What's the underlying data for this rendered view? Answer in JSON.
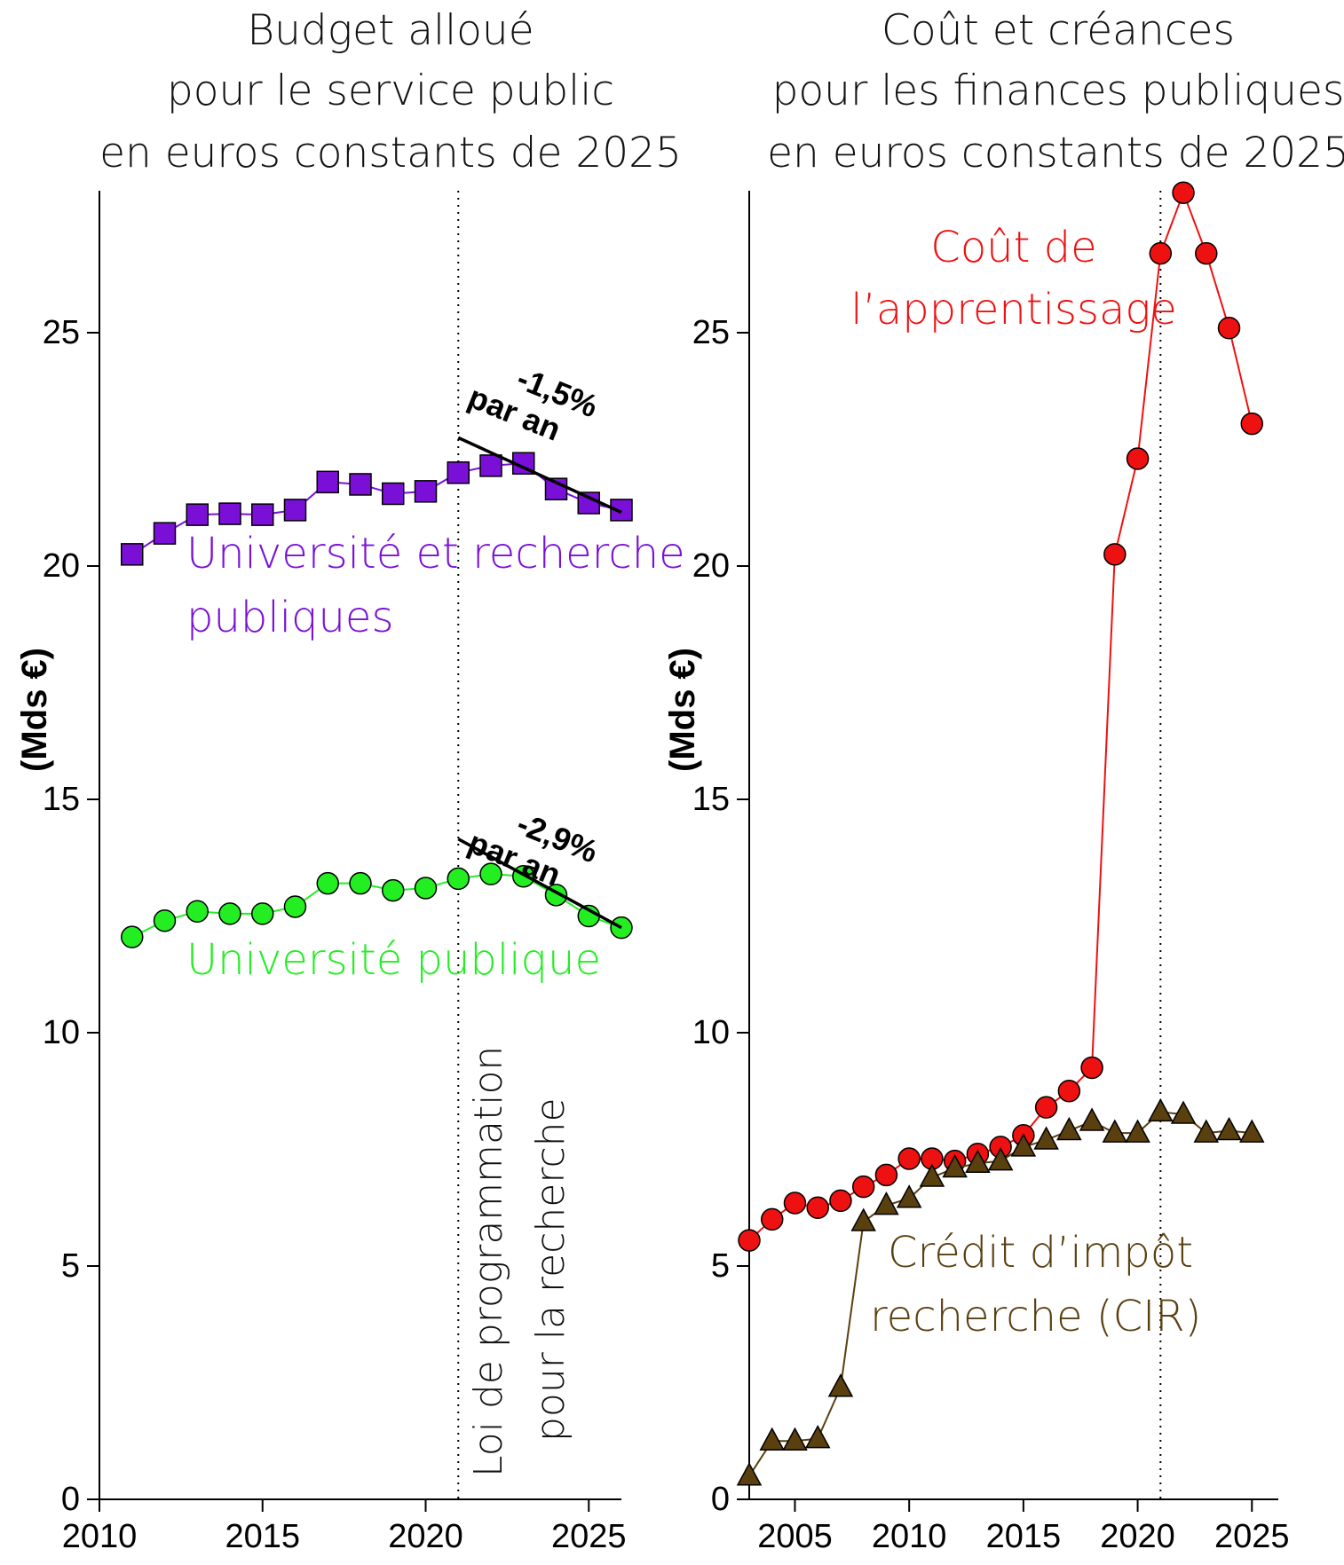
{
  "chart_data": [
    {
      "type": "line",
      "title": [
        "Budget alloué",
        "pour le service public",
        "en euros constants de 2025"
      ],
      "ylabel": "(Mds €)",
      "xlim": [
        2010,
        2026
      ],
      "ylim": [
        0,
        28
      ],
      "xticks": [
        2010,
        2015,
        2020,
        2025
      ],
      "yticks": [
        0,
        5,
        10,
        15,
        20,
        25
      ],
      "series": [
        {
          "name": "Université et recherche publiques",
          "label_lines": [
            "Université et recherche",
            "publiques"
          ],
          "color": "#7a10d8",
          "marker": "square",
          "x": [
            2011,
            2012,
            2013,
            2014,
            2015,
            2016,
            2017,
            2018,
            2019,
            2020,
            2021,
            2022,
            2023,
            2024,
            2025,
            2026
          ],
          "values": [
            20.25,
            20.7,
            21.1,
            21.12,
            21.1,
            21.2,
            21.8,
            21.75,
            21.55,
            21.6,
            22.0,
            22.15,
            22.2,
            21.65,
            21.35,
            21.2
          ]
        },
        {
          "name": "Université publique",
          "label_lines": [
            "Université publique"
          ],
          "color": "#22ee22",
          "marker": "circle",
          "x": [
            2011,
            2012,
            2013,
            2014,
            2015,
            2016,
            2017,
            2018,
            2019,
            2020,
            2021,
            2022,
            2023,
            2024,
            2025,
            2026
          ],
          "values": [
            12.05,
            12.4,
            12.6,
            12.55,
            12.55,
            12.7,
            13.2,
            13.2,
            13.05,
            13.1,
            13.3,
            13.4,
            13.35,
            12.95,
            12.5,
            12.25
          ]
        }
      ],
      "trend_lines": [
        {
          "x": [
            2021,
            2026
          ],
          "y": [
            22.75,
            21.15
          ],
          "label": [
            "-1,5%",
            "par an"
          ]
        },
        {
          "x": [
            2021,
            2026
          ],
          "y": [
            14.15,
            12.25
          ],
          "label": [
            "-2,9%",
            "par an"
          ]
        }
      ],
      "event": {
        "x": 2021,
        "label": [
          "Loi de programmation",
          "pour la recherche"
        ]
      }
    },
    {
      "type": "line",
      "title": [
        "Coût et créances",
        "pour les finances publiques",
        "en euros constants de 2025"
      ],
      "ylabel": "(Mds €)",
      "xlim": [
        2003,
        2026
      ],
      "ylim": [
        0,
        28
      ],
      "xticks": [
        2005,
        2010,
        2015,
        2020,
        2025
      ],
      "yticks": [
        0,
        5,
        10,
        15,
        20,
        25
      ],
      "series": [
        {
          "name": "Coût de l'apprentissage",
          "label_lines": [
            "Coût de",
            "l’apprentissage"
          ],
          "color": "#ee1111",
          "marker": "circle",
          "x": [
            2003,
            2004,
            2005,
            2006,
            2007,
            2008,
            2009,
            2010,
            2011,
            2012,
            2013,
            2014,
            2015,
            2016,
            2017,
            2018,
            2019,
            2020,
            2021,
            2022,
            2023,
            2024,
            2025
          ],
          "values": [
            5.55,
            6.0,
            6.35,
            6.25,
            6.4,
            6.7,
            6.95,
            7.3,
            7.3,
            7.25,
            7.4,
            7.55,
            7.8,
            8.4,
            8.75,
            9.25,
            20.25,
            22.3,
            26.7,
            28.0,
            26.7,
            25.1,
            23.05
          ]
        },
        {
          "name": "Crédit d'impôt recherche (CIR)",
          "label_lines": [
            "Crédit d’impôt",
            "recherche (CIR)"
          ],
          "color": "#5a3f0f",
          "marker": "triangle",
          "x": [
            2003,
            2004,
            2005,
            2006,
            2007,
            2008,
            2009,
            2010,
            2011,
            2012,
            2013,
            2014,
            2015,
            2016,
            2017,
            2018,
            2019,
            2020,
            2021,
            2022,
            2023,
            2024,
            2025
          ],
          "values": [
            0.5,
            1.25,
            1.25,
            1.3,
            2.4,
            5.95,
            6.3,
            6.45,
            6.9,
            7.1,
            7.2,
            7.25,
            7.55,
            7.7,
            7.9,
            8.1,
            7.85,
            7.85,
            8.3,
            8.25,
            7.85,
            7.9,
            7.85
          ]
        }
      ],
      "event": {
        "x": 2021
      }
    }
  ]
}
